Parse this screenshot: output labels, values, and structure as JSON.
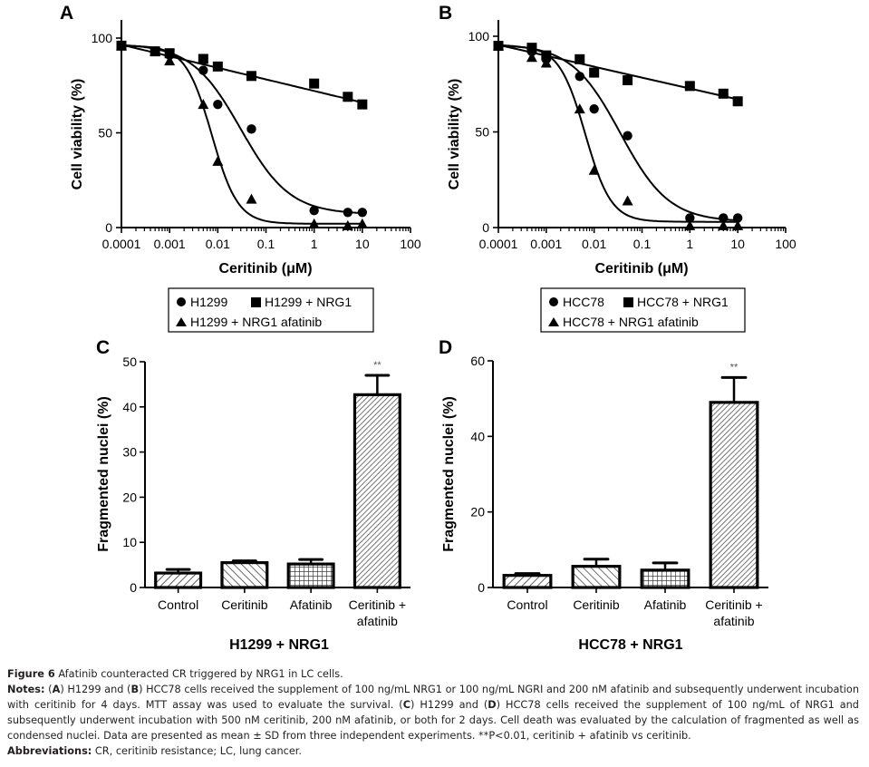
{
  "figure": {
    "caption_title_label": "Figure 6",
    "caption_title_text": "Afatinib counteracted CR triggered by NRG1 in LC cells.",
    "notes_label": "Notes:",
    "notes_parts": [
      "(",
      "A",
      ") H1299 and (",
      "B",
      ") HCC78 cells received the supplement of 100 ng/mL NRG1 or 100 ng/mL NGRI and 200 nM afatinib and subsequently underwent incubation with ceritinib for 4 days. MTT assay was used to evaluate the survival. (",
      "C",
      ") H1299 and (",
      "D",
      ") HCC78 cells received the supplement of 100 ng/mL of NRG1 and subsequently underwent incubation with 500 nM ceritinib, 200 nM afatinib, or both for 2 days. Cell death was evaluated by the calculation of fragmented as well as condensed nuclei. Data are presented as mean ± SD from three independent experiments. **P<0.01, ceritinib + afatinib vs ceritinib."
    ],
    "abbreviations_label": "Abbreviations:",
    "abbreviations_text": "CR, ceritinib resistance; LC, lung cancer."
  },
  "chart_data": [
    {
      "panel": "A",
      "type": "scatter",
      "xscale": "log",
      "xlabel": "Ceritinib (μM)",
      "ylabel": "Cell viability (%)",
      "xlim": [
        0.0001,
        100
      ],
      "ylim": [
        0,
        100
      ],
      "xticks": [
        "0.0001",
        "0.001",
        "0.01",
        "0.1",
        "1",
        "10",
        "100"
      ],
      "yticks": [
        "0",
        "50",
        "100"
      ],
      "grid": false,
      "legend": {
        "placement": "bottom",
        "entries": [
          {
            "marker": "circle",
            "label": "H1299"
          },
          {
            "marker": "square",
            "label": "H1299 + NRG1"
          },
          {
            "marker": "triangle",
            "label": "H1299 + NRG1 afatinib"
          }
        ]
      },
      "x": [
        0.0001,
        0.0005,
        0.001,
        0.005,
        0.01,
        0.05,
        1,
        5,
        10
      ],
      "series": [
        {
          "name": "H1299",
          "marker": "circle",
          "values": [
            96,
            93,
            91,
            83,
            65,
            52,
            9,
            8,
            8
          ],
          "fit": {
            "top": 97,
            "bottom": 7,
            "ec50": 0.03,
            "hill": 0.85
          }
        },
        {
          "name": "H1299 + NRG1",
          "marker": "square",
          "values": [
            96,
            93,
            92,
            89,
            85,
            80,
            76,
            69,
            65
          ],
          "fit": {
            "linear_log": true,
            "start": 96.5,
            "end": 66
          }
        },
        {
          "name": "H1299 + NRG1 afatinib",
          "marker": "triangle",
          "values": [
            96,
            93,
            88,
            65,
            35,
            15,
            2,
            1,
            2
          ],
          "fit": {
            "top": 96,
            "bottom": 2,
            "ec50": 0.0075,
            "hill": 1.6
          }
        }
      ]
    },
    {
      "panel": "B",
      "type": "scatter",
      "xscale": "log",
      "xlabel": "Ceritinib (μM)",
      "ylabel": "Cell viability (%)",
      "xlim": [
        0.0001,
        100
      ],
      "ylim": [
        0,
        100
      ],
      "xticks": [
        "0.0001",
        "0.001",
        "0.01",
        "0.1",
        "1",
        "10",
        "100"
      ],
      "yticks": [
        "0",
        "50",
        "100"
      ],
      "grid": false,
      "legend": {
        "placement": "bottom",
        "entries": [
          {
            "marker": "circle",
            "label": "HCC78"
          },
          {
            "marker": "square",
            "label": "HCC78 + NRG1"
          },
          {
            "marker": "triangle",
            "label": "HCC78 + NRG1 afatinib"
          }
        ]
      },
      "x": [
        0.0001,
        0.0005,
        0.001,
        0.005,
        0.01,
        0.05,
        1,
        5,
        10
      ],
      "series": [
        {
          "name": "HCC78",
          "marker": "circle",
          "values": [
            95,
            92,
            88,
            79,
            62,
            48,
            5,
            5,
            5
          ],
          "fit": {
            "top": 96,
            "bottom": 3,
            "ec50": 0.035,
            "hill": 0.85
          }
        },
        {
          "name": "HCC78 + NRG1",
          "marker": "square",
          "values": [
            95,
            94,
            90,
            88,
            81,
            77,
            74,
            70,
            66
          ],
          "fit": {
            "linear_log": true,
            "start": 95.5,
            "end": 67
          }
        },
        {
          "name": "HCC78 + NRG1 afatinib",
          "marker": "triangle",
          "values": [
            95,
            89,
            86,
            62,
            30,
            14,
            1,
            1,
            1
          ],
          "fit": {
            "top": 95,
            "bottom": 3,
            "ec50": 0.0065,
            "hill": 1.6
          }
        }
      ]
    },
    {
      "panel": "C",
      "type": "bar",
      "title": "H1299 + NRG1",
      "xlabel": "H1299 + NRG1",
      "ylabel": "Fragmented nuclei (%)",
      "ylim": [
        0,
        50
      ],
      "yticks": [
        "0",
        "10",
        "20",
        "30",
        "40",
        "50"
      ],
      "grid": false,
      "categories": [
        "Control",
        "Ceritinib",
        "Afatinib",
        "Ceritinib + afatinib"
      ],
      "category_lines": [
        [
          "Control"
        ],
        [
          "Ceritinib"
        ],
        [
          "Afatinib"
        ],
        [
          "Ceritinib +",
          "afatinib"
        ]
      ],
      "values": [
        3.2,
        5.5,
        5.2,
        42.7
      ],
      "errors": [
        0.8,
        0.4,
        1.0,
        4.3
      ],
      "patterns": [
        "diag-right",
        "diag-left",
        "grid",
        "dense-diag"
      ],
      "annotations": [
        {
          "category": "Ceritinib + afatinib",
          "text": "**"
        }
      ]
    },
    {
      "panel": "D",
      "type": "bar",
      "title": "HCC78 + NRG1",
      "xlabel": "HCC78 + NRG1",
      "ylabel": "Fragmented nuclei (%)",
      "ylim": [
        0,
        60
      ],
      "yticks": [
        "0",
        "20",
        "40",
        "60"
      ],
      "grid": false,
      "categories": [
        "Control",
        "Ceritinib",
        "Afatinib",
        "Ceritinib + afatinib"
      ],
      "category_lines": [
        [
          "Control"
        ],
        [
          "Ceritinib"
        ],
        [
          "Afatinib"
        ],
        [
          "Ceritinib +",
          "afatinib"
        ]
      ],
      "values": [
        3.2,
        5.6,
        4.6,
        49.0
      ],
      "errors": [
        0.5,
        1.9,
        1.9,
        6.6
      ],
      "patterns": [
        "diag-right",
        "diag-left",
        "grid",
        "dense-diag"
      ],
      "annotations": [
        {
          "category": "Ceritinib + afatinib",
          "text": "**"
        }
      ]
    }
  ]
}
